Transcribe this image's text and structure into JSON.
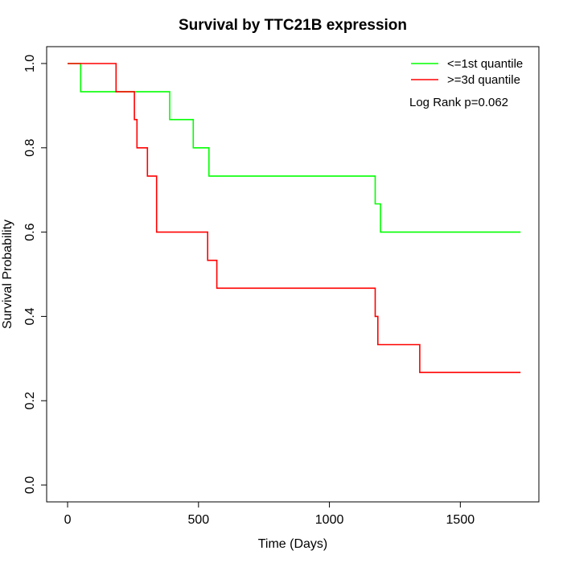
{
  "chart_data": {
    "type": "line",
    "title": "Survival by TTC21B expression",
    "xlabel": "Time (Days)",
    "ylabel": "Survival Probability",
    "xlim": [
      -80,
      1800
    ],
    "ylim": [
      -0.04,
      1.04
    ],
    "x_ticks": [
      0,
      500,
      1000,
      1500
    ],
    "x_tick_labels": [
      "0",
      "500",
      "1000",
      "1500"
    ],
    "y_ticks": [
      0.0,
      0.2,
      0.4,
      0.6,
      0.8,
      1.0
    ],
    "y_tick_labels": [
      "0.0",
      "0.2",
      "0.4",
      "0.6",
      "0.8",
      "1.0"
    ],
    "grid": false,
    "legend_position": "top-right",
    "annotation": "Log Rank p=0.062",
    "series": [
      {
        "name": "<=1st quantile",
        "color": "#00ff00",
        "step": true,
        "points": [
          [
            0,
            1.0
          ],
          [
            50,
            0.933
          ],
          [
            390,
            0.867
          ],
          [
            480,
            0.8
          ],
          [
            540,
            0.733
          ],
          [
            1175,
            0.667
          ],
          [
            1195,
            0.6
          ],
          [
            1730,
            0.6
          ]
        ]
      },
      {
        "name": ">=3d quantile",
        "color": "#ff0000",
        "step": true,
        "points": [
          [
            0,
            1.0
          ],
          [
            185,
            0.933
          ],
          [
            255,
            0.867
          ],
          [
            265,
            0.8
          ],
          [
            305,
            0.733
          ],
          [
            340,
            0.6
          ],
          [
            535,
            0.533
          ],
          [
            570,
            0.467
          ],
          [
            1175,
            0.4
          ],
          [
            1185,
            0.333
          ],
          [
            1345,
            0.267
          ],
          [
            1730,
            0.267
          ]
        ]
      }
    ]
  }
}
